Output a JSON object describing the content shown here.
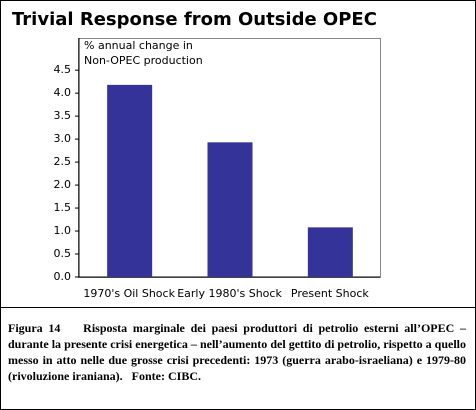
{
  "chart_data": {
    "type": "bar",
    "title": "Trivial Response from Outside OPEC",
    "y_label": [
      "% annual change in",
      "Non-OPEC production"
    ],
    "categories": [
      "1970's Oil Shock",
      "Early 1980's Shock",
      "Present Shock"
    ],
    "values": [
      4.18,
      2.93,
      1.08
    ],
    "color": "#333399",
    "ylim": [
      0,
      5.2
    ],
    "yticks": [
      {
        "value": 0,
        "label": "0.0"
      },
      0.5,
      {
        "value": 1,
        "label": "1.0"
      },
      1.5,
      {
        "value": 2,
        "label": "2.0"
      },
      2.5,
      {
        "value": 3,
        "label": "3.0"
      },
      3.5,
      {
        "value": 4,
        "label": "4.0"
      },
      4.5
    ],
    "grid": false
  },
  "caption": {
    "label": "Figura 14",
    "text": "Risposta marginale dei paesi produttori di petrolio esterni all’OPEC – durante la presente crisi energetica – nell’aumento del gettito di petrolio, rispetto a quello messo in atto nelle due grosse crisi precedenti: 1973 (guerra arabo-israeliana) e 1979-80 (rivoluzione iraniana).",
    "source": "Fonte: CIBC."
  }
}
